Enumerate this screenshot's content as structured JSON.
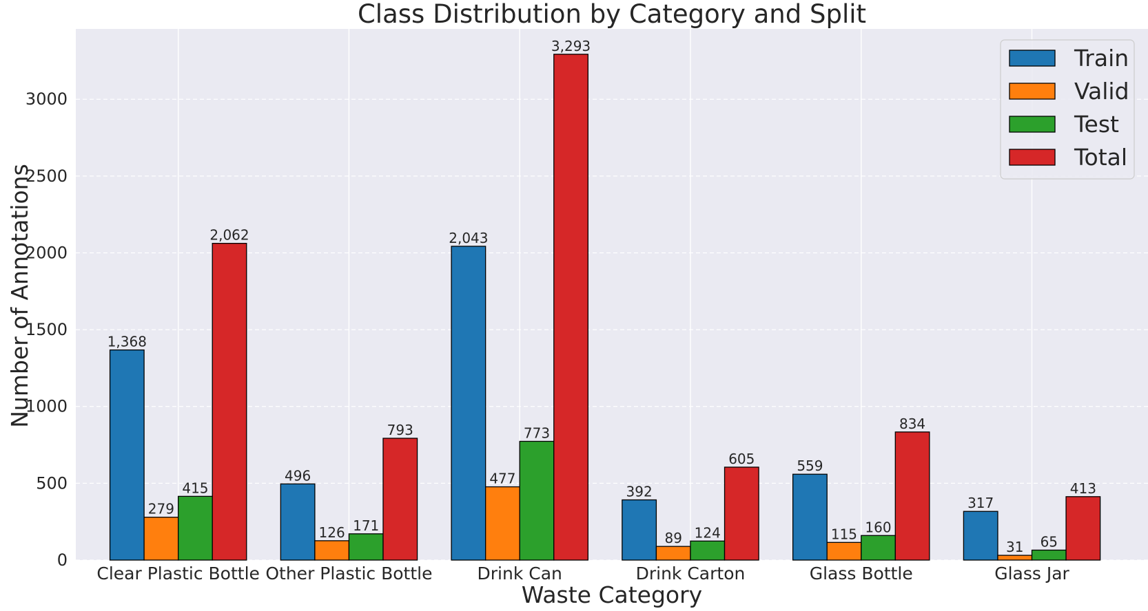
{
  "chart_data": {
    "type": "bar",
    "title": "Class Distribution by Category and Split",
    "xlabel": "Waste Category",
    "ylabel": "Number of Annotations",
    "categories": [
      "Clear Plastic Bottle",
      "Other Plastic Bottle",
      "Drink Can",
      "Drink Carton",
      "Glass Bottle",
      "Glass Jar"
    ],
    "series": [
      {
        "name": "Train",
        "color": "#1f77b4",
        "values": [
          1368,
          496,
          2043,
          392,
          559,
          317
        ],
        "labels": [
          "1,368",
          "496",
          "2,043",
          "392",
          "559",
          "317"
        ]
      },
      {
        "name": "Valid",
        "color": "#ff7f0e",
        "values": [
          279,
          126,
          477,
          89,
          115,
          31
        ],
        "labels": [
          "279",
          "126",
          "477",
          "89",
          "115",
          "31"
        ]
      },
      {
        "name": "Test",
        "color": "#2ca02c",
        "values": [
          415,
          171,
          773,
          124,
          160,
          65
        ],
        "labels": [
          "415",
          "171",
          "773",
          "124",
          "160",
          "65"
        ]
      },
      {
        "name": "Total",
        "color": "#d62728",
        "values": [
          2062,
          793,
          3293,
          605,
          834,
          413
        ],
        "labels": [
          "2,062",
          "793",
          "3,293",
          "605",
          "834",
          "413"
        ]
      }
    ],
    "ylim": [
      0,
      3458
    ],
    "yticks": [
      0,
      500,
      1000,
      1500,
      2000,
      2500,
      3000
    ],
    "ytick_labels": [
      "0",
      "500",
      "1000",
      "1500",
      "2000",
      "2500",
      "3000"
    ],
    "grid": true,
    "legend_position": "top-right",
    "background": "#eaeaf2"
  }
}
